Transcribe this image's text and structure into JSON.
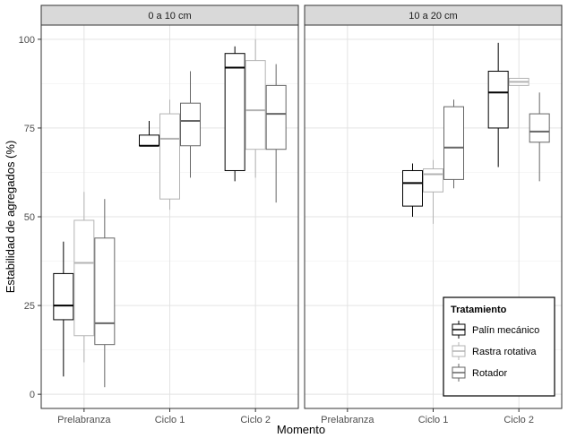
{
  "chart_data": {
    "type": "boxplot",
    "xlabel": "Momento",
    "ylabel": "Estabilidad de agregados (%)",
    "ylim": [
      -4,
      104
    ],
    "yticks": [
      0,
      25,
      50,
      75,
      100
    ],
    "categories": [
      "Prelabranza",
      "Ciclo 1",
      "Ciclo 2"
    ],
    "legend": {
      "title": "Tratamiento",
      "position": "bottom-right inside second panel",
      "entries": [
        {
          "name": "Palín mecánico",
          "color": "#000000"
        },
        {
          "name": "Rastra rotativa",
          "color": "#b3b3b3"
        },
        {
          "name": "Rotador",
          "color": "#666666"
        }
      ]
    },
    "grid": true,
    "facets": [
      {
        "label": "0 a 10 cm",
        "groups": [
          {
            "category": "Prelabranza",
            "series": "Palín mecánico",
            "min": 5,
            "q1": 21,
            "median": 25,
            "q3": 34,
            "max": 43
          },
          {
            "category": "Prelabranza",
            "series": "Rastra rotativa",
            "min": 9,
            "q1": 16.5,
            "median": 37,
            "q3": 49,
            "max": 57
          },
          {
            "category": "Prelabranza",
            "series": "Rotador",
            "min": 2,
            "q1": 14,
            "median": 20,
            "q3": 44,
            "max": 55
          },
          {
            "category": "Ciclo 1",
            "series": "Palín mecánico",
            "min": 70,
            "q1": 70,
            "median": 70,
            "q3": 73,
            "max": 77
          },
          {
            "category": "Ciclo 1",
            "series": "Rastra rotativa",
            "min": 52,
            "q1": 55,
            "median": 72,
            "q3": 79,
            "max": 83
          },
          {
            "category": "Ciclo 1",
            "series": "Rotador",
            "min": 61,
            "q1": 70,
            "median": 77,
            "q3": 82,
            "max": 91
          },
          {
            "category": "Ciclo 2",
            "series": "Palín mecánico",
            "min": 60,
            "q1": 63,
            "median": 92,
            "q3": 96,
            "max": 98
          },
          {
            "category": "Ciclo 2",
            "series": "Rastra rotativa",
            "min": 61,
            "q1": 69,
            "median": 80,
            "q3": 94,
            "max": 100
          },
          {
            "category": "Ciclo 2",
            "series": "Rotador",
            "min": 54,
            "q1": 69,
            "median": 79,
            "q3": 87,
            "max": 93
          }
        ]
      },
      {
        "label": "10 a 20 cm",
        "groups": [
          {
            "category": "Ciclo 1",
            "series": "Palín mecánico",
            "min": 50,
            "q1": 53,
            "median": 59.5,
            "q3": 63,
            "max": 65
          },
          {
            "category": "Ciclo 1",
            "series": "Rastra rotativa",
            "min": 48,
            "q1": 57,
            "median": 62,
            "q3": 63.5,
            "max": 66
          },
          {
            "category": "Ciclo 1",
            "series": "Rotador",
            "min": 58,
            "q1": 60.5,
            "median": 69.5,
            "q3": 81,
            "max": 83
          },
          {
            "category": "Ciclo 2",
            "series": "Palín mecánico",
            "min": 64,
            "q1": 75,
            "median": 85,
            "q3": 91,
            "max": 99
          },
          {
            "category": "Ciclo 2",
            "series": "Rastra rotativa",
            "min": 87,
            "q1": 87,
            "median": 88,
            "q3": 89,
            "max": 89
          },
          {
            "category": "Ciclo 2",
            "series": "Rotador",
            "min": 60,
            "q1": 71,
            "median": 74,
            "q3": 79,
            "max": 85
          }
        ]
      }
    ]
  }
}
